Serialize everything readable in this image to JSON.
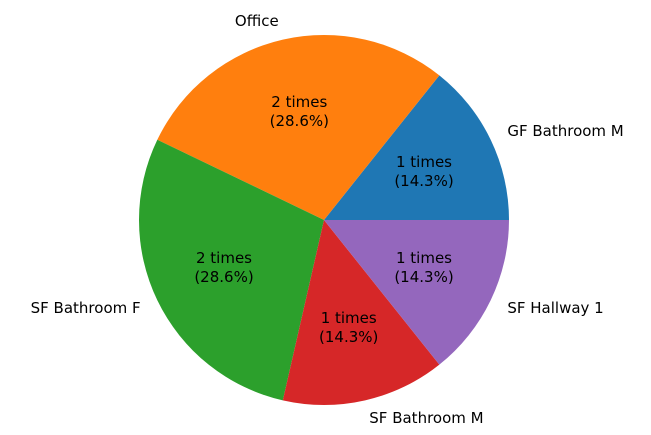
{
  "chart_data": {
    "type": "pie",
    "title": "",
    "slices": [
      {
        "label": "GF Bathroom M",
        "value": 1,
        "percent": 14.3,
        "value_text": "1 times",
        "percent_text": "(14.3%)",
        "color": "#1f77b4"
      },
      {
        "label": "Office",
        "value": 2,
        "percent": 28.6,
        "value_text": "2 times",
        "percent_text": "(28.6%)",
        "color": "#ff7f0e"
      },
      {
        "label": "SF Bathroom F",
        "value": 2,
        "percent": 28.6,
        "value_text": "2 times",
        "percent_text": "(28.6%)",
        "color": "#2ca02c"
      },
      {
        "label": "SF Bathroom M",
        "value": 1,
        "percent": 14.3,
        "value_text": "1 times",
        "percent_text": "(14.3%)",
        "color": "#d62728"
      },
      {
        "label": "SF Hallway 1",
        "value": 1,
        "percent": 14.3,
        "value_text": "1 times",
        "percent_text": "(14.3%)",
        "color": "#9467bd"
      }
    ],
    "start_angle": 0,
    "direction": "counterclockwise",
    "legend": "none"
  }
}
